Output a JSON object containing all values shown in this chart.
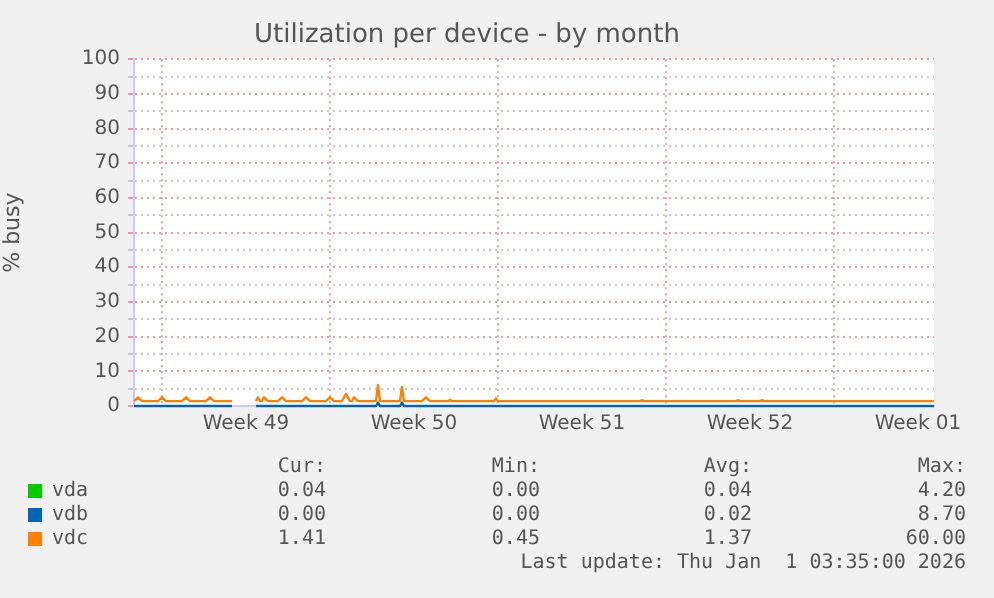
{
  "chart_data": {
    "type": "line",
    "title": "Utilization per device - by month",
    "ylabel": "% busy",
    "x": [
      "2025-11-29T20:00",
      "2025-11-30T00:00",
      "2025-11-30T04:00",
      "2025-11-30T20:00",
      "2025-12-01T00:00",
      "2025-12-01T04:00",
      "2025-12-01T20:00",
      "2025-12-02T00:00",
      "2025-12-02T04:00",
      "2025-12-02T20:00",
      "2025-12-03T00:00",
      "2025-12-03T04:00",
      "2025-12-03T22:00",
      "2025-12-04T00:00",
      "2025-12-04T22:00",
      "2025-12-05T00:00",
      "2025-12-05T02:00",
      "2025-12-05T04:00",
      "2025-12-05T06:00",
      "2025-12-05T10:00",
      "2025-12-05T20:00",
      "2025-12-06T00:00",
      "2025-12-06T04:00",
      "2025-12-06T20:00",
      "2025-12-07T00:00",
      "2025-12-07T04:00",
      "2025-12-07T20:00",
      "2025-12-08T00:00",
      "2025-12-08T04:00",
      "2025-12-08T12:00",
      "2025-12-08T16:00",
      "2025-12-08T20:00",
      "2025-12-08T22:00",
      "2025-12-09T00:00",
      "2025-12-09T04:00",
      "2025-12-09T22:00",
      "2025-12-10T00:00",
      "2025-12-10T02:00",
      "2025-12-10T22:00",
      "2025-12-11T00:00",
      "2025-12-11T02:00",
      "2025-12-11T20:00",
      "2025-12-12T00:00",
      "2025-12-12T04:00",
      "2025-12-12T22:00",
      "2025-12-13T00:00",
      "2025-12-13T02:00",
      "2025-12-14T20:00",
      "2025-12-14T22:00",
      "2025-12-15T00:00",
      "2025-12-20T22:00",
      "2025-12-21T00:00",
      "2025-12-21T02:00",
      "2025-12-24T22:00",
      "2025-12-25T00:00",
      "2025-12-25T02:00",
      "2025-12-25T22:00",
      "2025-12-26T00:00",
      "2025-12-26T02:00",
      "2026-01-02T04:00"
    ],
    "series": [
      {
        "name": "vda",
        "color": "#00cc00",
        "values": [
          null,
          null,
          null,
          null,
          null,
          null,
          null,
          null,
          null,
          null,
          null,
          null,
          null,
          null,
          null,
          null,
          null,
          null,
          null,
          null,
          null,
          null,
          null,
          null,
          null,
          null,
          null,
          null,
          null,
          null,
          null,
          null,
          null,
          null,
          null,
          null,
          null,
          null,
          null,
          null,
          null,
          null,
          null,
          null,
          null,
          null,
          null,
          null,
          null,
          null,
          null,
          null,
          null,
          null,
          null,
          null,
          null,
          null,
          null,
          null
        ]
      },
      {
        "name": "vdb",
        "color": "#0066b3",
        "values": [
          0,
          0,
          0,
          0,
          0,
          0,
          0,
          0,
          0,
          0,
          0,
          0,
          0,
          null,
          0,
          0,
          0,
          0,
          0,
          0,
          0,
          0,
          0,
          0,
          0,
          0,
          0,
          0,
          0,
          0,
          0,
          0,
          0,
          0,
          0,
          0,
          1,
          0,
          0,
          1,
          0,
          0,
          0,
          0,
          0,
          0,
          0,
          0,
          0,
          0,
          0,
          0,
          0,
          0,
          0,
          0,
          0,
          0,
          0,
          0
        ]
      },
      {
        "name": "vdc",
        "color": "#ff8000",
        "values": [
          1.4,
          2.5,
          1.4,
          1.4,
          2.5,
          1.4,
          1.4,
          2.5,
          1.4,
          1.4,
          2.5,
          1.4,
          1.4,
          null,
          1.4,
          2.5,
          1.4,
          1.4,
          2.5,
          1.4,
          1.4,
          2.5,
          1.4,
          1.4,
          2.5,
          1.4,
          1.4,
          2.5,
          1.4,
          1.4,
          3.5,
          1.4,
          1.4,
          2.5,
          1.4,
          1.4,
          6,
          1.4,
          1.4,
          5.5,
          1.4,
          1.4,
          2.5,
          1.4,
          1.4,
          1.8,
          1.4,
          1.4,
          2.2,
          1.4,
          1.4,
          1.7,
          1.4,
          1.4,
          1.7,
          1.4,
          1.4,
          1.7,
          1.4,
          1.4
        ]
      }
    ],
    "xlim": [
      "2025-11-29T20:00",
      "2026-01-02T04:00"
    ],
    "xticks": [
      {
        "value": "2025-12-01T00:00",
        "label": null
      },
      {
        "value": "2025-12-04T12:00",
        "label": "Week 49"
      },
      {
        "value": "2025-12-08T00:00",
        "label": null
      },
      {
        "value": "2025-12-11T12:00",
        "label": "Week 50"
      },
      {
        "value": "2025-12-15T00:00",
        "label": null
      },
      {
        "value": "2025-12-18T12:00",
        "label": "Week 51"
      },
      {
        "value": "2025-12-22T00:00",
        "label": null
      },
      {
        "value": "2025-12-25T12:00",
        "label": "Week 52"
      },
      {
        "value": "2025-12-29T00:00",
        "label": null
      },
      {
        "value": "2026-01-01T12:00",
        "label": "Week 01"
      }
    ],
    "ylim": [
      0,
      100
    ],
    "yticks": [
      0,
      {
        "value": 5,
        "label": null
      },
      10,
      {
        "value": 15,
        "label": null
      },
      20,
      {
        "value": 25,
        "label": null
      },
      30,
      {
        "value": 35,
        "label": null
      },
      40,
      {
        "value": 45,
        "label": null
      },
      50,
      {
        "value": 55,
        "label": null
      },
      60,
      {
        "value": 65,
        "label": null
      },
      70,
      {
        "value": 75,
        "label": null
      },
      80,
      {
        "value": 85,
        "label": null
      },
      90,
      {
        "value": 95,
        "label": null
      },
      100
    ],
    "grid": true,
    "legend": "bottom",
    "marker": "none",
    "line_style": "solid",
    "annotations": [
      "Cur:",
      "Min:",
      "Avg:",
      "Max:",
      "0.04",
      "0.00",
      "0.04",
      "4.20",
      "0.00",
      "0.00",
      "0.02",
      "8.70",
      "1.41",
      "0.45",
      "1.37",
      "60.00",
      "Last update: Thu Jan  1 03:35:00 2026"
    ]
  }
}
